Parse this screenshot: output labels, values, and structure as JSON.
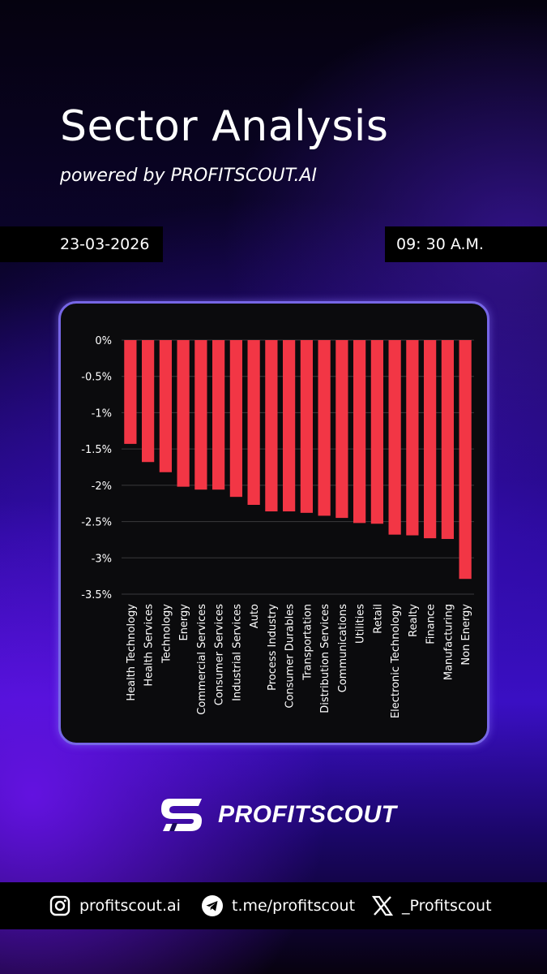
{
  "header": {
    "title": "Sector Analysis",
    "subtitle": "powered by PROFITSCOUT.AI",
    "date": "23-03-2026",
    "time": "09: 30 A.M."
  },
  "colors": {
    "bar": "#f23645",
    "card_border": "#7666e6"
  },
  "chart_data": {
    "type": "bar",
    "title": "",
    "xlabel": "",
    "ylabel": "",
    "ylim": [
      -3.5,
      0
    ],
    "yticks": [
      0,
      -0.5,
      -1,
      -1.5,
      -2,
      -2.5,
      -3,
      -3.5
    ],
    "ytick_labels": [
      "0%",
      "-0.5%",
      "-1%",
      "-1.5%",
      "-2%",
      "-2.5%",
      "-3%",
      "-3.5%"
    ],
    "grid": true,
    "categories": [
      "Health Technology",
      "Health Services",
      "Technology",
      "Energy",
      "Commercial Services",
      "Consumer Services",
      "Industrial Services",
      "Auto",
      "Process Industry",
      "Consumer Durables",
      "Transportation",
      "Distribution Services",
      "Communications",
      "Utilities",
      "Retail",
      "Electronic Technology",
      "Realty",
      "Finance",
      "Manufacturing",
      "Non Energy"
    ],
    "values": [
      -1.43,
      -1.68,
      -1.82,
      -2.02,
      -2.06,
      -2.06,
      -2.16,
      -2.27,
      -2.36,
      -2.36,
      -2.38,
      -2.42,
      -2.45,
      -2.52,
      -2.53,
      -2.68,
      -2.69,
      -2.73,
      -2.74,
      -3.29
    ]
  },
  "logo": {
    "text": "PROFITSCOUT"
  },
  "footer": {
    "instagram": "profitscout.ai",
    "telegram": "t.me/profitscout",
    "x": "_Profitscout"
  }
}
